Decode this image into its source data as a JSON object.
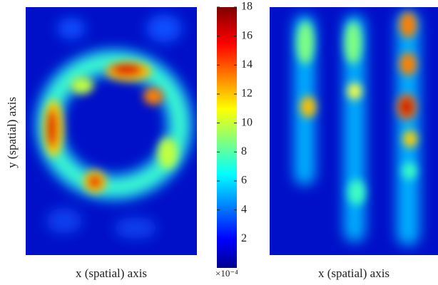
{
  "chart_data": [
    {
      "type": "heatmap",
      "xlabel": "x (spatial) axis",
      "ylabel": "y  (spatial) axis"
    },
    {
      "type": "colorbar",
      "colormap": "jet",
      "ylim": [
        0,
        18
      ],
      "yticks": [
        2,
        4,
        6,
        8,
        10,
        12,
        14,
        16,
        18
      ],
      "offset_label": "×10⁻⁴"
    },
    {
      "type": "heatmap",
      "xlabel": "x  (spatial) axis"
    }
  ]
}
